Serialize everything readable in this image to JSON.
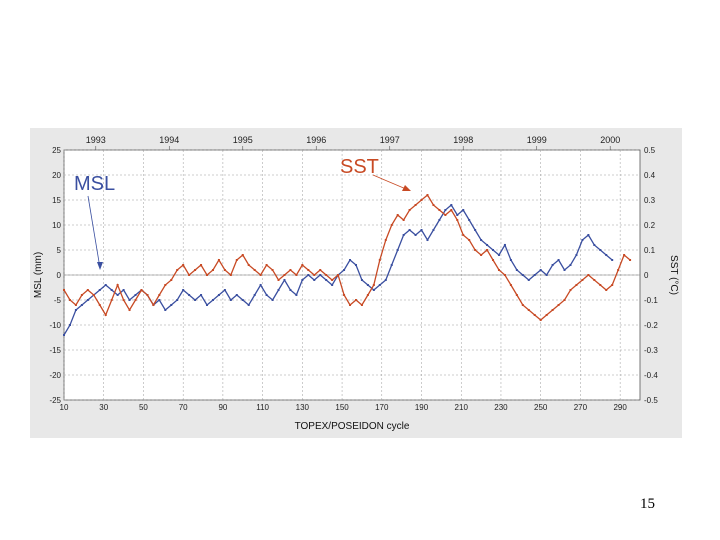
{
  "page": {
    "number": "15"
  },
  "chart_data": {
    "type": "line",
    "xlabel": "TOPEX/POSEIDON cycle",
    "ylabel_left": "MSL (mm)",
    "ylabel_right": "SST (°C)",
    "xlim": [
      10,
      300
    ],
    "ylim_left": [
      -25,
      25
    ],
    "ylim_right": [
      -0.5,
      0.5
    ],
    "x_ticks": [
      10,
      30,
      50,
      70,
      90,
      110,
      130,
      150,
      170,
      190,
      210,
      230,
      250,
      270,
      290
    ],
    "y_ticks_left": [
      -25,
      -20,
      -15,
      -10,
      -5,
      0,
      5,
      10,
      15,
      20,
      25
    ],
    "y_ticks_right": [
      "-0.5",
      "-0.4",
      "-0.3",
      "-0.2",
      "-0.1",
      "0",
      "0.1",
      "0.2",
      "0.3",
      "0.4",
      "0.5"
    ],
    "years": [
      {
        "label": "1993",
        "cycle": 26
      },
      {
        "label": "1994",
        "cycle": 63
      },
      {
        "label": "1995",
        "cycle": 100
      },
      {
        "label": "1996",
        "cycle": 137
      },
      {
        "label": "1997",
        "cycle": 174
      },
      {
        "label": "1998",
        "cycle": 211
      },
      {
        "label": "1999",
        "cycle": 248
      },
      {
        "label": "2000",
        "cycle": 285
      }
    ],
    "grid": true,
    "series": [
      {
        "name": "MSL",
        "axis": "left",
        "color": "#3a4fa0",
        "x": [
          10,
          13,
          16,
          19,
          22,
          25,
          28,
          31,
          34,
          37,
          40,
          43,
          46,
          49,
          52,
          55,
          58,
          61,
          64,
          67,
          70,
          73,
          76,
          79,
          82,
          85,
          88,
          91,
          94,
          97,
          100,
          103,
          106,
          109,
          112,
          115,
          118,
          121,
          124,
          127,
          130,
          133,
          136,
          139,
          142,
          145,
          148,
          151,
          154,
          157,
          160,
          163,
          166,
          169,
          172,
          175,
          178,
          181,
          184,
          187,
          190,
          193,
          196,
          199,
          202,
          205,
          208,
          211,
          214,
          217,
          220,
          223,
          226,
          229,
          232,
          235,
          238,
          241,
          244,
          247,
          250,
          253,
          256,
          259,
          262,
          265,
          268,
          271,
          274,
          277,
          280,
          283,
          286
        ],
        "y": [
          -12,
          -10,
          -7,
          -6,
          -5,
          -4,
          -3,
          -2,
          -3,
          -4,
          -3,
          -5,
          -4,
          -3,
          -4,
          -6,
          -5,
          -7,
          -6,
          -5,
          -3,
          -4,
          -5,
          -4,
          -6,
          -5,
          -4,
          -3,
          -5,
          -4,
          -5,
          -6,
          -4,
          -2,
          -4,
          -5,
          -3,
          -1,
          -3,
          -4,
          -1,
          0,
          -1,
          0,
          -1,
          -2,
          0,
          1,
          3,
          2,
          -1,
          -2,
          -3,
          -2,
          -1,
          2,
          5,
          8,
          9,
          8,
          9,
          7,
          9,
          11,
          13,
          14,
          12,
          13,
          11,
          9,
          7,
          6,
          5,
          4,
          6,
          3,
          1,
          0,
          -1,
          0,
          1,
          0,
          2,
          3,
          1,
          2,
          4,
          7,
          8,
          6,
          5,
          4,
          3
        ],
        "values": [
          -12,
          -10,
          -7,
          -6,
          -5,
          -4,
          -3,
          -2,
          -3,
          -4,
          -3,
          -5,
          -4,
          -3,
          -4,
          -6,
          -5,
          -7,
          -6,
          -5,
          -3,
          -4,
          -5,
          -4,
          -6,
          -5,
          -4,
          -3,
          -5,
          -4,
          -5,
          -6,
          -4,
          -2,
          -4,
          -5,
          -3,
          -1,
          -3,
          -4,
          -1,
          0,
          -1,
          0,
          -1,
          -2,
          0,
          1,
          3,
          2,
          -1,
          -2,
          -3,
          -2,
          -1,
          2,
          5,
          8,
          9,
          8,
          9,
          7,
          9,
          11,
          13,
          14,
          12,
          13,
          11,
          9,
          7,
          6,
          5,
          4,
          6,
          3,
          1,
          0,
          -1,
          0,
          1,
          0,
          2,
          3,
          1,
          2,
          4,
          7,
          8,
          6,
          5,
          4,
          3
        ]
      },
      {
        "name": "SST",
        "axis": "right",
        "color": "#c84a24",
        "x": [
          10,
          13,
          16,
          19,
          22,
          25,
          28,
          31,
          34,
          37,
          40,
          43,
          46,
          49,
          52,
          55,
          58,
          61,
          64,
          67,
          70,
          73,
          76,
          79,
          82,
          85,
          88,
          91,
          94,
          97,
          100,
          103,
          106,
          109,
          112,
          115,
          118,
          121,
          124,
          127,
          130,
          133,
          136,
          139,
          142,
          145,
          148,
          151,
          154,
          157,
          160,
          163,
          166,
          169,
          172,
          175,
          178,
          181,
          184,
          187,
          190,
          193,
          196,
          199,
          202,
          205,
          208,
          211,
          214,
          217,
          220,
          223,
          226,
          229,
          232,
          235,
          238,
          241,
          244,
          247,
          250,
          253,
          256,
          259,
          262,
          265,
          268,
          271,
          274,
          277,
          280,
          283,
          286,
          289,
          292,
          295
        ],
        "y": [
          -0.06,
          -0.1,
          -0.12,
          -0.08,
          -0.06,
          -0.08,
          -0.12,
          -0.16,
          -0.1,
          -0.04,
          -0.1,
          -0.14,
          -0.1,
          -0.06,
          -0.08,
          -0.12,
          -0.08,
          -0.04,
          -0.02,
          0.02,
          0.04,
          0.0,
          0.02,
          0.04,
          0.0,
          0.02,
          0.06,
          0.02,
          0.0,
          0.06,
          0.08,
          0.04,
          0.02,
          0.0,
          0.04,
          0.02,
          -0.02,
          0.0,
          0.02,
          0.0,
          0.04,
          0.02,
          0.0,
          0.02,
          0.0,
          -0.02,
          0.0,
          -0.08,
          -0.12,
          -0.1,
          -0.12,
          -0.08,
          -0.04,
          0.06,
          0.14,
          0.2,
          0.24,
          0.22,
          0.26,
          0.28,
          0.3,
          0.32,
          0.28,
          0.26,
          0.24,
          0.26,
          0.22,
          0.16,
          0.14,
          0.1,
          0.08,
          0.1,
          0.06,
          0.02,
          0.0,
          -0.04,
          -0.08,
          -0.12,
          -0.14,
          -0.16,
          -0.18,
          -0.16,
          -0.14,
          -0.12,
          -0.1,
          -0.06,
          -0.04,
          -0.02,
          0.0,
          -0.02,
          -0.04,
          -0.06,
          -0.04,
          0.02,
          0.08,
          0.06
        ]
      }
    ],
    "annotations": [
      {
        "text": "MSL",
        "series": "MSL"
      },
      {
        "text": "SST",
        "series": "SST"
      }
    ]
  }
}
